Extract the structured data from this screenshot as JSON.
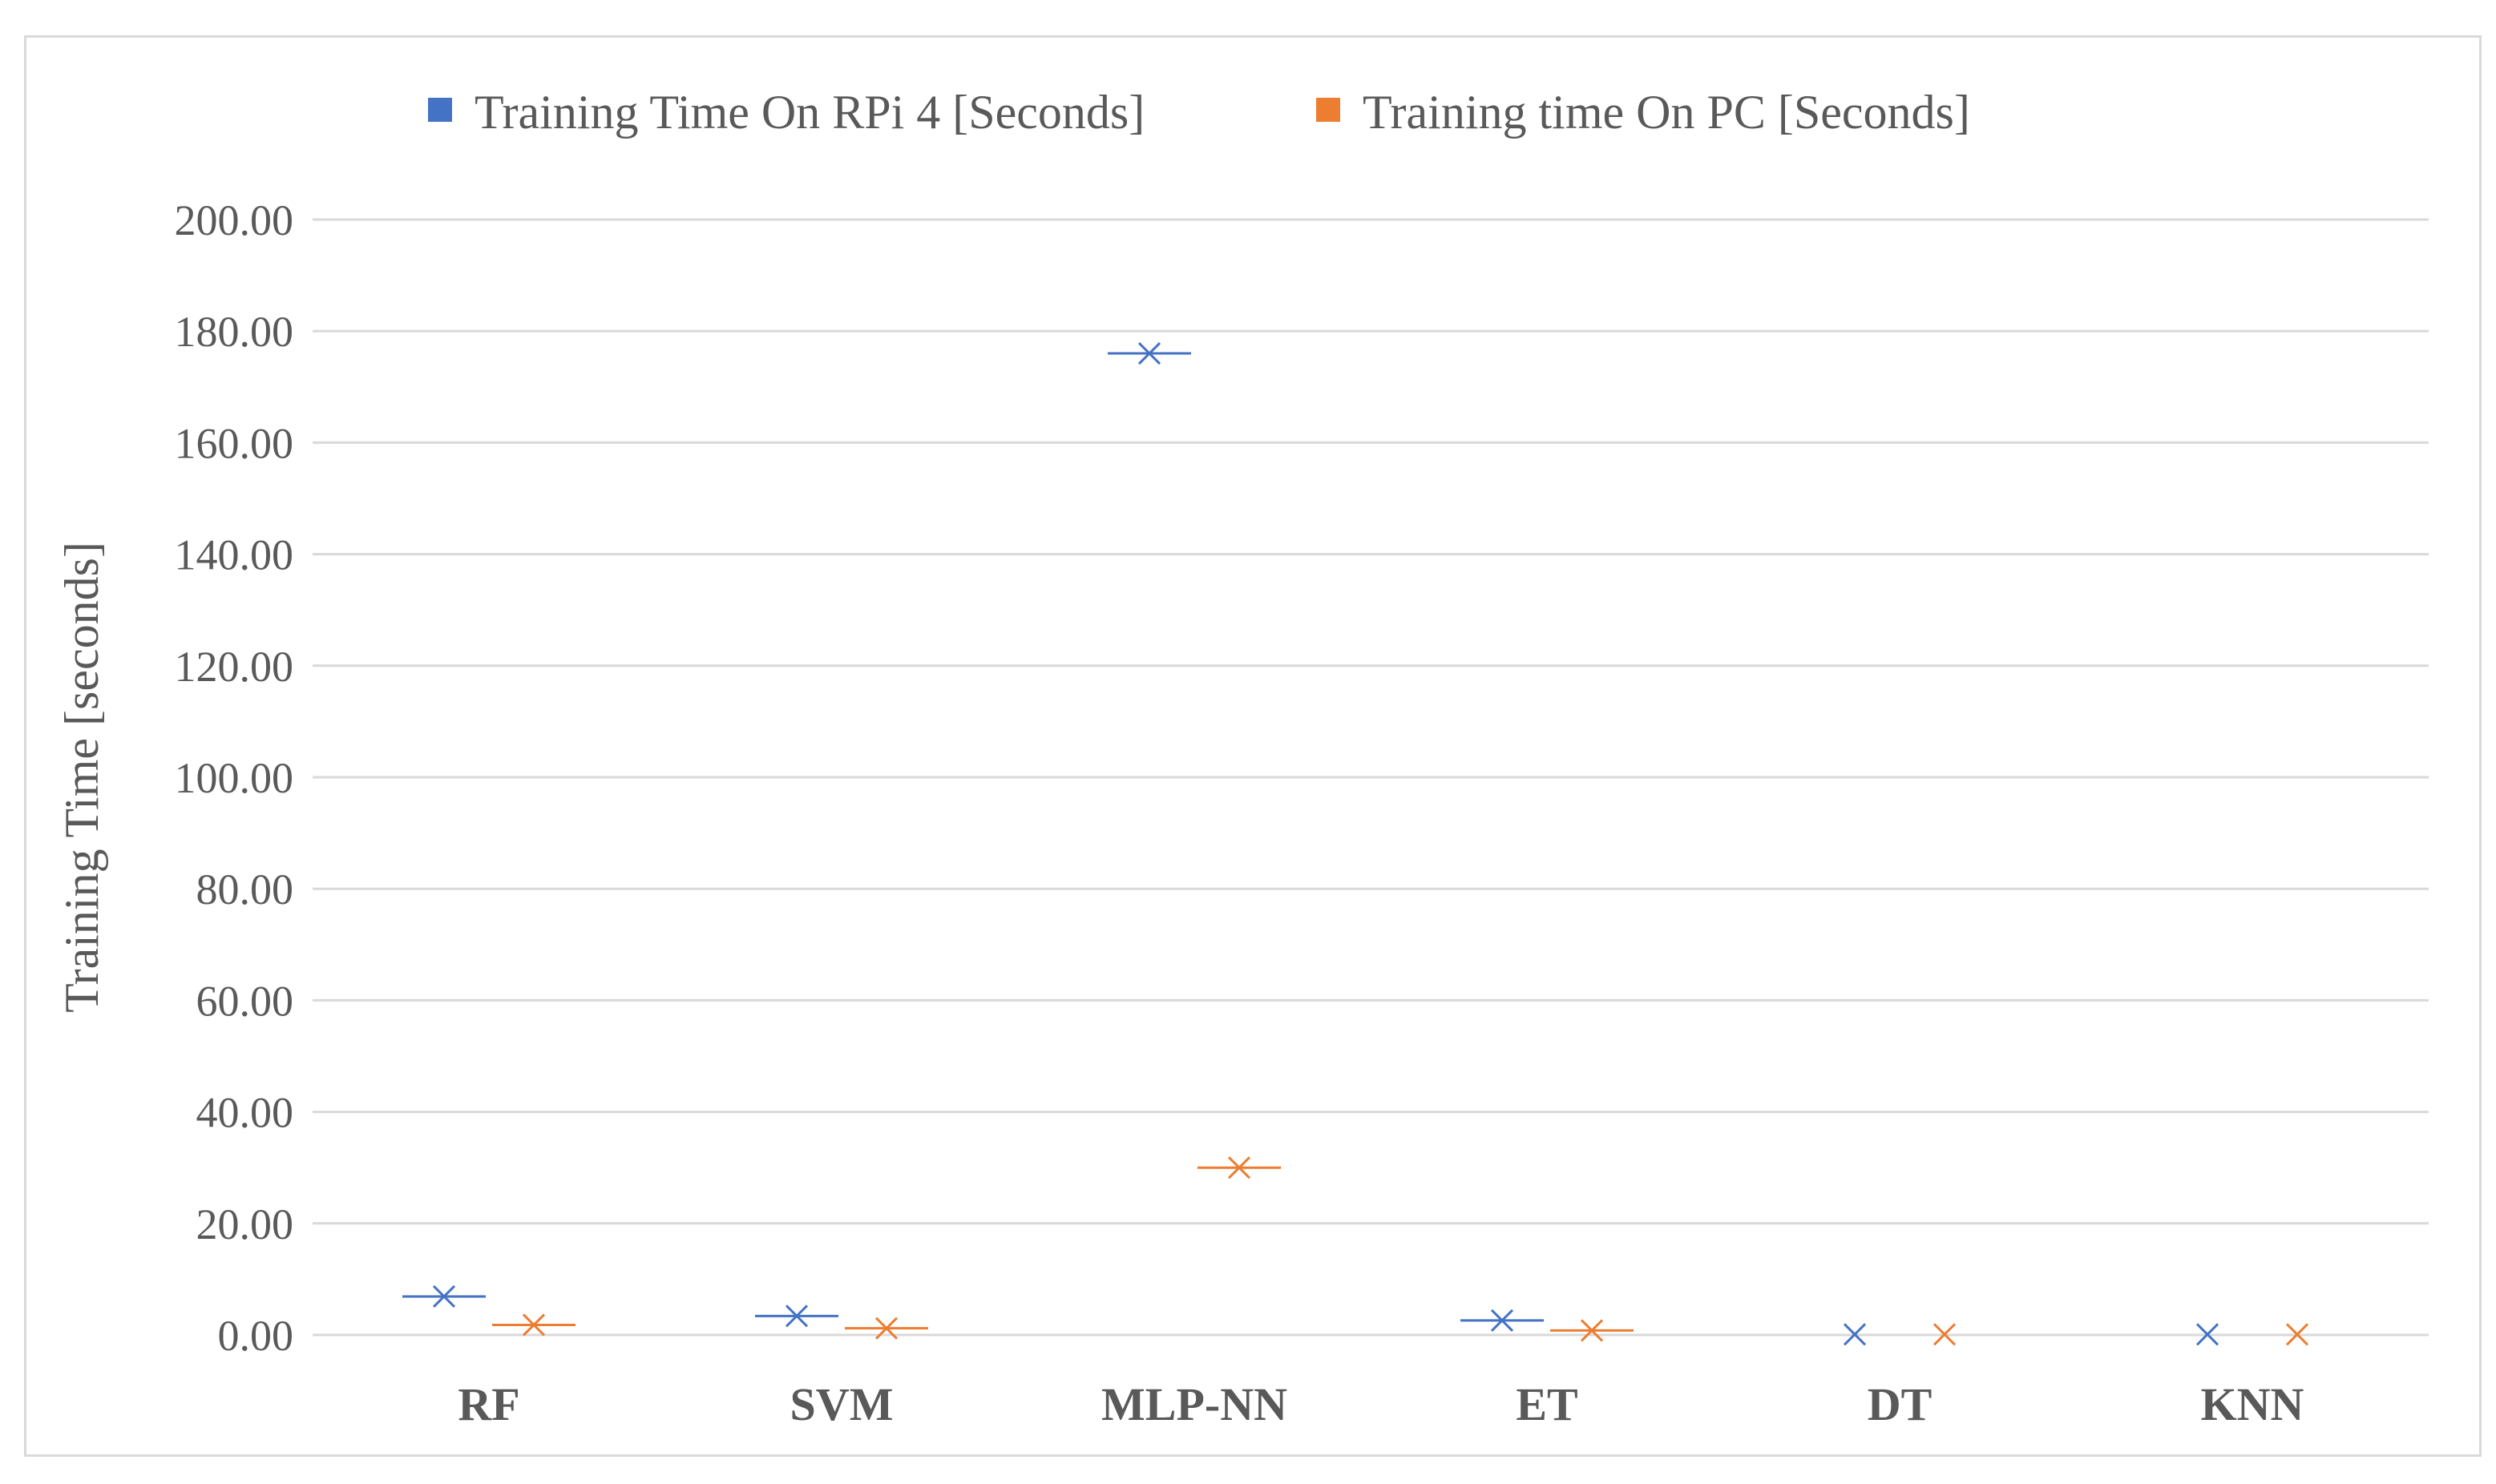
{
  "chart_data": {
    "type": "scatter",
    "title": "",
    "xlabel": "",
    "ylabel": "Training Time [seconds]",
    "ylim": [
      0,
      200
    ],
    "yticks": [
      "0.00",
      "20.00",
      "40.00",
      "60.00",
      "80.00",
      "100.00",
      "120.00",
      "140.00",
      "160.00",
      "180.00",
      "200.00"
    ],
    "categories": [
      "RF",
      "SVM",
      "MLP-NN",
      "ET",
      "DT",
      "KNN"
    ],
    "grid": true,
    "legend_position": "top",
    "marker": "x-with-dash",
    "series": [
      {
        "name": "Training Time On RPi  4 [Seconds]",
        "color": "#4472c4",
        "values": [
          6.9,
          3.4,
          176.0,
          2.6,
          0.1,
          0.1
        ]
      },
      {
        "name": "Training time On PC [Seconds]",
        "color": "#ed7d31",
        "values": [
          1.8,
          1.2,
          30.0,
          0.8,
          0.1,
          0.1
        ]
      }
    ]
  }
}
